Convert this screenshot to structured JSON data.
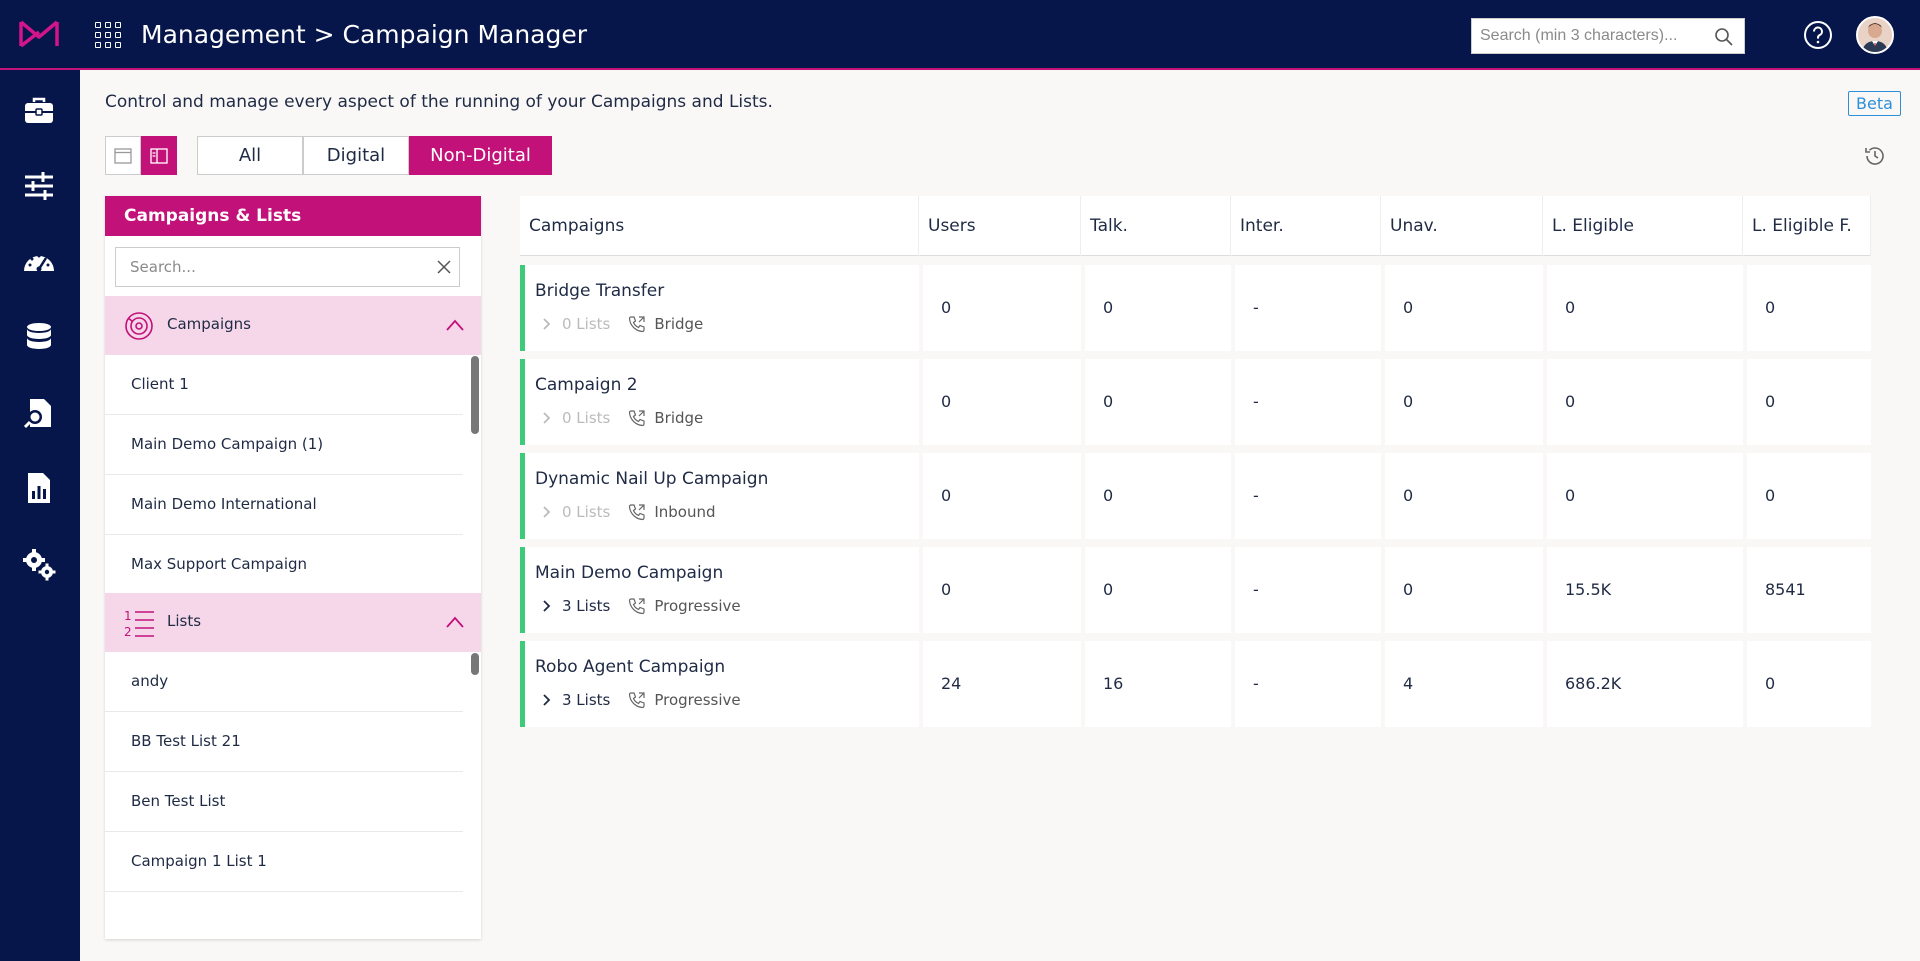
{
  "header": {
    "breadcrumb": "Management > Campaign Manager",
    "search_placeholder": "Search (min 3 characters)..."
  },
  "description": "Control and manage every aspect of the running of your Campaigns and Lists.",
  "beta_label": "Beta",
  "filter_tabs": [
    {
      "label": "All",
      "active": false
    },
    {
      "label": "Digital",
      "active": false
    },
    {
      "label": "Non-Digital",
      "active": true
    }
  ],
  "panel": {
    "title": "Campaigns & Lists",
    "search_placeholder": "Search...",
    "campaigns_label": "Campaigns",
    "campaigns": [
      "Client 1",
      "Main Demo Campaign (1)",
      "Main Demo International",
      "Max Support Campaign"
    ],
    "lists_label": "Lists",
    "lists": [
      "andy",
      "BB Test List 21",
      "Ben Test List",
      "Campaign 1 List 1"
    ]
  },
  "table": {
    "columns": [
      "Campaigns",
      "Users",
      "Talk.",
      "Inter.",
      "Unav.",
      "L. Eligible",
      "L. Eligible F."
    ],
    "rows": [
      {
        "name": "Bridge Transfer",
        "lists": "0 Lists",
        "type": "Bridge",
        "users": "0",
        "talk": "0",
        "inter": "-",
        "unav": "0",
        "eligible": "0",
        "eligible_f": "0"
      },
      {
        "name": "Campaign 2",
        "lists": "0 Lists",
        "type": "Bridge",
        "users": "0",
        "talk": "0",
        "inter": "-",
        "unav": "0",
        "eligible": "0",
        "eligible_f": "0"
      },
      {
        "name": "Dynamic Nail Up Campaign",
        "lists": "0 Lists",
        "type": "Inbound",
        "users": "0",
        "talk": "0",
        "inter": "-",
        "unav": "0",
        "eligible": "0",
        "eligible_f": "0"
      },
      {
        "name": "Main Demo Campaign",
        "lists": "3 Lists",
        "type": "Progressive",
        "users": "0",
        "talk": "0",
        "inter": "-",
        "unav": "0",
        "eligible": "15.5K",
        "eligible_f": "8541"
      },
      {
        "name": "Robo Agent Campaign",
        "lists": "3 Lists",
        "type": "Progressive",
        "users": "24",
        "talk": "16",
        "inter": "-",
        "unav": "4",
        "eligible": "686.2K",
        "eligible_f": "0"
      }
    ]
  },
  "colors": {
    "nav_bg": "#06164a",
    "accent": "#c2127a",
    "row_status": "#3dcb7a"
  }
}
